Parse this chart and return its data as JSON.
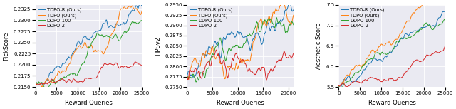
{
  "colors": {
    "TDPO-R": "#1f77b4",
    "TDPO": "#ff7f0e",
    "DDPO-100": "#2ca02c",
    "DDPO-2": "#d62728"
  },
  "legend_labels": [
    "TDPO-R (Ours)",
    "TDPO (Ours)",
    "DDPO-100",
    "DDPO-2"
  ],
  "subplot1": {
    "ylabel": "PickScore",
    "xlabel": "Reward Queries",
    "xlim": [
      0,
      25000
    ],
    "ylim": [
      0.215,
      0.2335
    ],
    "yticks": [
      0.215,
      0.2175,
      0.22,
      0.2225,
      0.225,
      0.2275,
      0.23,
      0.2325
    ],
    "xticks": [
      0,
      5000,
      10000,
      15000,
      20000,
      25000
    ]
  },
  "subplot2": {
    "ylabel": "HPSv2",
    "xlabel": "Reward Queries",
    "xlim": [
      0,
      21000
    ],
    "ylim": [
      0.275,
      0.295
    ],
    "yticks": [
      0.275,
      0.2775,
      0.28,
      0.2825,
      0.285,
      0.2875,
      0.29,
      0.2925,
      0.295
    ],
    "xticks": [
      0,
      5000,
      10000,
      15000,
      20000
    ]
  },
  "subplot3": {
    "ylabel": "Aesthetic Score",
    "xlabel": "Reward Queries",
    "xlim": [
      0,
      25000
    ],
    "ylim": [
      5.5,
      7.5
    ],
    "yticks": [
      5.5,
      6.0,
      6.5,
      7.0,
      7.5
    ],
    "xticks": [
      0,
      5000,
      10000,
      15000,
      20000,
      25000
    ]
  }
}
